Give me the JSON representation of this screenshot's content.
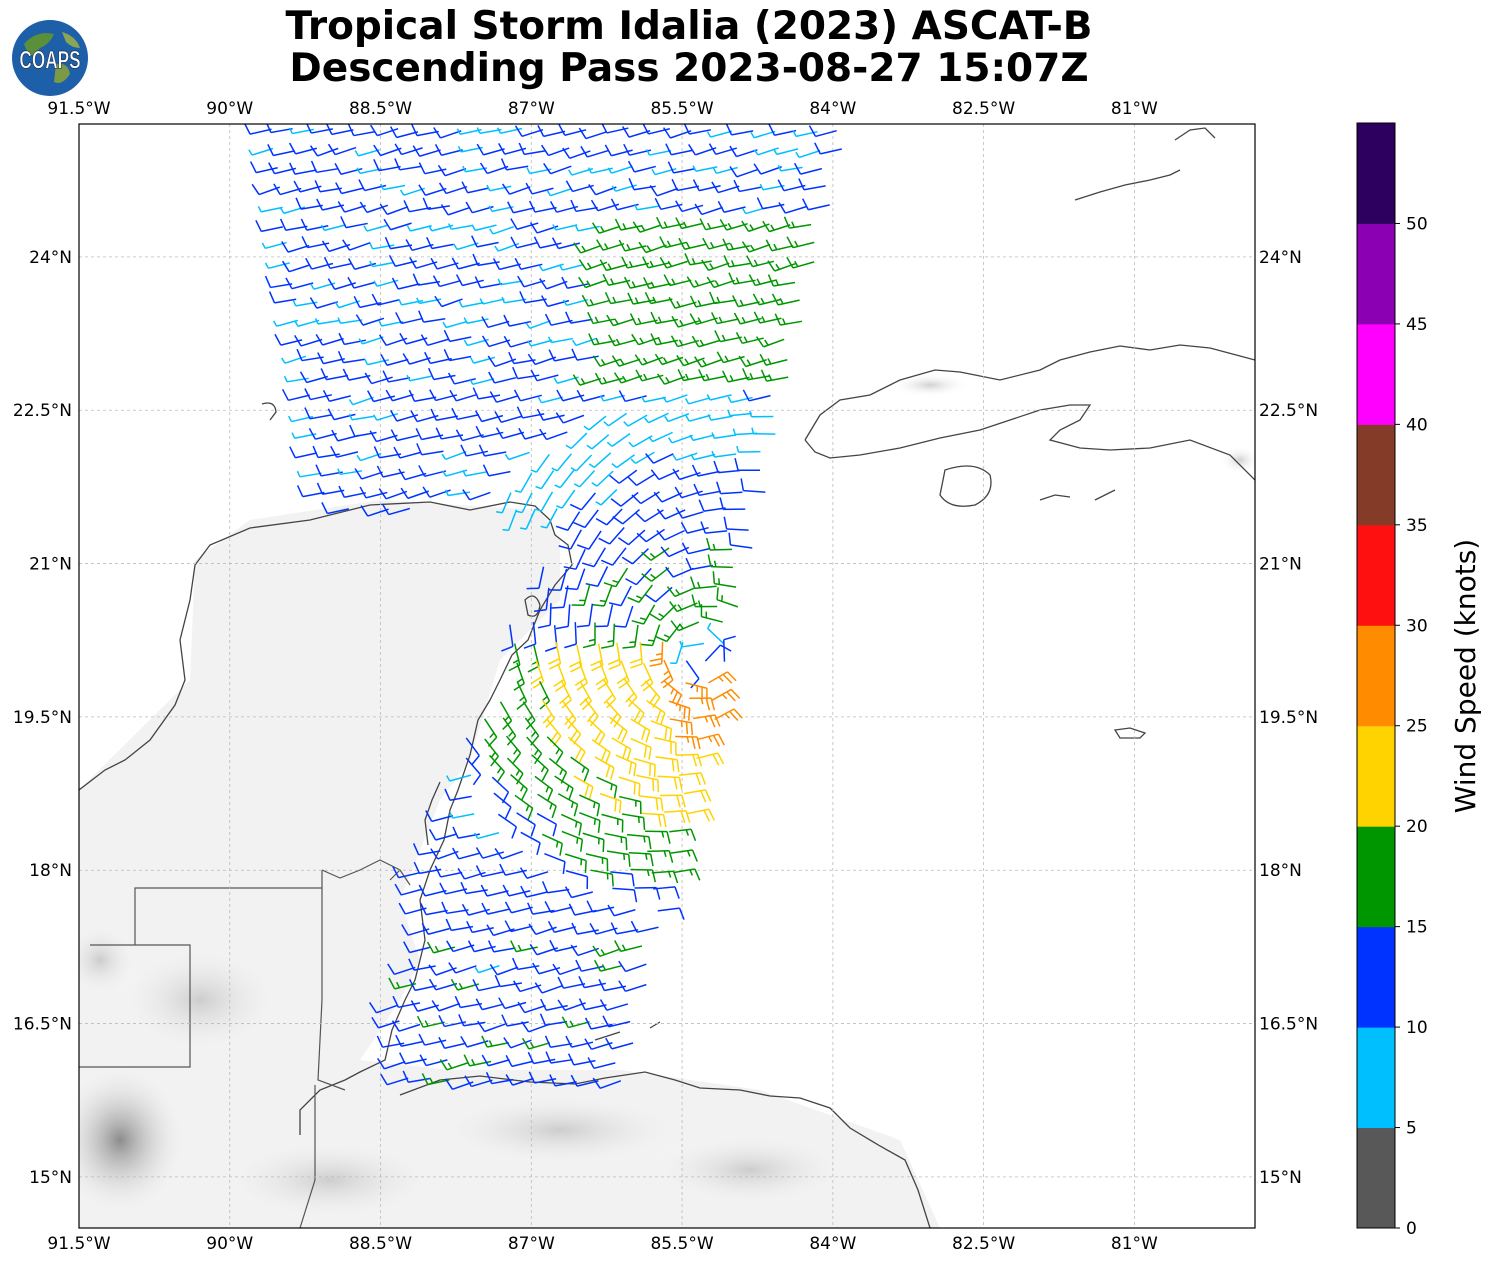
{
  "title_line1": "Tropical Storm Idalia (2023) ASCAT-B",
  "title_line2": "Descending Pass 2023-08-27 15:07Z",
  "logo_text": "COAPS",
  "map": {
    "lon_range": [
      -91.5,
      -79.8
    ],
    "lat_range": [
      14.5,
      25.3
    ],
    "lon_ticks": [
      "91.5°W",
      "90°W",
      "88.5°W",
      "87°W",
      "85.5°W",
      "84°W",
      "82.5°W",
      "81°W"
    ],
    "lon_tick_values": [
      -91.5,
      -90,
      -88.5,
      -87,
      -85.5,
      -84,
      -82.5,
      -81
    ],
    "lat_ticks": [
      "24°N",
      "22.5°N",
      "21°N",
      "19.5°N",
      "18°N",
      "16.5°N",
      "15°N"
    ],
    "lat_tick_values": [
      24,
      22.5,
      21,
      19.5,
      18,
      16.5,
      15
    ],
    "storm_center": {
      "lon": -85.3,
      "lat": 20.1
    },
    "gridlines": true
  },
  "colorbar": {
    "label": "Wind Speed (knots)",
    "ticks": [
      "0",
      "5",
      "10",
      "15",
      "20",
      "25",
      "30",
      "35",
      "40",
      "45",
      "50"
    ],
    "colors": [
      "#585858",
      "#00bfff",
      "#0033ff",
      "#009600",
      "#ffd300",
      "#ff8c00",
      "#ff1010",
      "#843c28",
      "#ff00ff",
      "#8c00b4",
      "#2d005f"
    ]
  },
  "colors": {
    "coast": "#444444",
    "grid": "#bbbbbb"
  }
}
